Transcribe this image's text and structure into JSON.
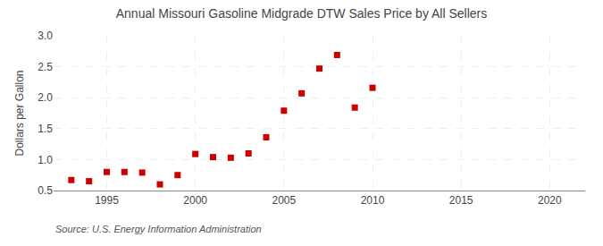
{
  "chart_data": {
    "type": "scatter",
    "title": "Annual Missouri Gasoline Midgrade DTW Sales Price by All Sellers",
    "ylabel": "Dollars per Gallon",
    "annotations": [
      "Source: U.S. Energy Information Administration"
    ],
    "x": [
      1993,
      1994,
      1995,
      1996,
      1997,
      1998,
      1999,
      2000,
      2001,
      2002,
      2003,
      2004,
      2005,
      2006,
      2007,
      2008,
      2009,
      2010
    ],
    "values": [
      0.67,
      0.65,
      0.8,
      0.8,
      0.79,
      0.6,
      0.75,
      1.09,
      1.04,
      1.03,
      1.1,
      1.36,
      1.79,
      2.07,
      2.47,
      2.69,
      1.84,
      2.16
    ],
    "color": "#cc0000",
    "marker": "square",
    "xlim": [
      1992,
      2022
    ],
    "xticks": [
      1995,
      2000,
      2005,
      2010,
      2015,
      2020
    ],
    "ylim": [
      0.5,
      3.0
    ],
    "yticks": [
      0.5,
      {
        "value": 1,
        "label": "1.0"
      },
      1.5,
      {
        "value": 2,
        "label": "2.0"
      },
      2.5,
      {
        "value": 3,
        "label": "3.0"
      }
    ],
    "grid": true
  }
}
